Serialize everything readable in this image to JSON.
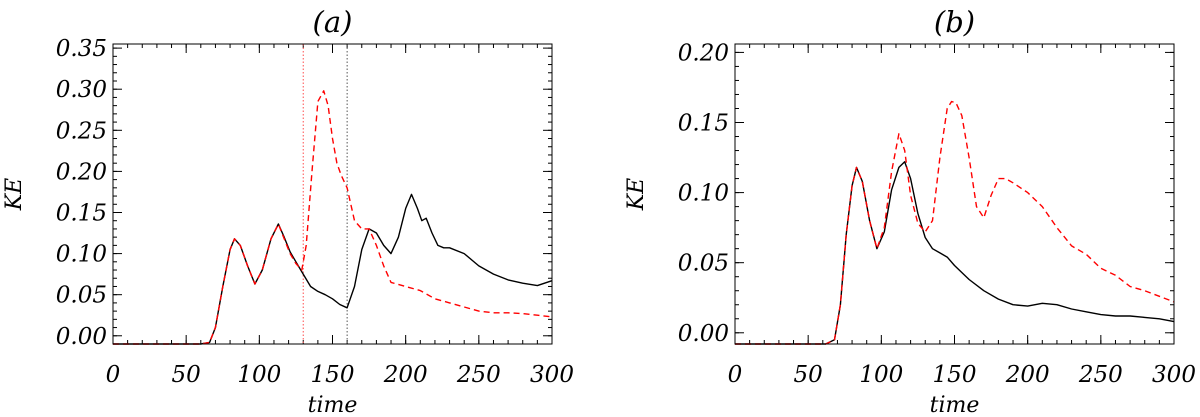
{
  "chart_data": [
    {
      "type": "line",
      "title": "(a)",
      "xlabel": "time",
      "ylabel": "KE",
      "xlim": [
        0,
        300
      ],
      "ylim": [
        -0.01,
        0.355
      ],
      "xticks": [
        0,
        50,
        100,
        150,
        200,
        250,
        300
      ],
      "xtick_labels": [
        "0",
        "50",
        "100",
        "150",
        "200",
        "250",
        "300"
      ],
      "yticks": [
        0.0,
        0.05,
        0.1,
        0.15,
        0.2,
        0.25,
        0.3,
        0.35
      ],
      "ytick_labels": [
        "0.00",
        "0.05",
        "0.10",
        "0.15",
        "0.20",
        "0.25",
        "0.30",
        "0.35"
      ],
      "vlines": [
        {
          "x": 130,
          "color": "#ff4d4d"
        },
        {
          "x": 160,
          "color": "#555555"
        }
      ],
      "series": [
        {
          "color": "#000000",
          "dash": "solid",
          "x": [
            0,
            60,
            66,
            70,
            75,
            80,
            83,
            87,
            92,
            97,
            102,
            108,
            113,
            117,
            121,
            125,
            130,
            135,
            140,
            145,
            150,
            155,
            160,
            165,
            170,
            175,
            180,
            185,
            190,
            195,
            200,
            204,
            208,
            211,
            214,
            218,
            222,
            226,
            230,
            240,
            250,
            260,
            270,
            280,
            290,
            300
          ],
          "y": [
            -0.01,
            -0.01,
            -0.008,
            0.01,
            0.06,
            0.105,
            0.118,
            0.11,
            0.085,
            0.063,
            0.08,
            0.118,
            0.136,
            0.12,
            0.102,
            0.09,
            0.075,
            0.06,
            0.054,
            0.05,
            0.045,
            0.038,
            0.034,
            0.06,
            0.105,
            0.13,
            0.125,
            0.11,
            0.1,
            0.12,
            0.155,
            0.172,
            0.155,
            0.14,
            0.143,
            0.125,
            0.11,
            0.107,
            0.107,
            0.1,
            0.085,
            0.075,
            0.068,
            0.064,
            0.061,
            0.067
          ]
        },
        {
          "color": "#ff0000",
          "dash": "dashed",
          "x": [
            0,
            60,
            66,
            70,
            75,
            80,
            83,
            87,
            92,
            97,
            102,
            108,
            113,
            117,
            121,
            125,
            129,
            132,
            136,
            140,
            144,
            147,
            150,
            153,
            156,
            160,
            165,
            170,
            175,
            180,
            185,
            190,
            200,
            210,
            220,
            230,
            240,
            250,
            260,
            270,
            280,
            290,
            300
          ],
          "y": [
            -0.01,
            -0.01,
            -0.008,
            0.01,
            0.06,
            0.105,
            0.118,
            0.11,
            0.085,
            0.063,
            0.08,
            0.118,
            0.136,
            0.118,
            0.1,
            0.088,
            0.08,
            0.11,
            0.2,
            0.285,
            0.298,
            0.28,
            0.24,
            0.21,
            0.195,
            0.18,
            0.14,
            0.13,
            0.13,
            0.11,
            0.085,
            0.065,
            0.06,
            0.055,
            0.045,
            0.04,
            0.035,
            0.03,
            0.028,
            0.028,
            0.027,
            0.025,
            0.023
          ]
        }
      ]
    },
    {
      "type": "line",
      "title": "(b)",
      "xlabel": "time",
      "ylabel": "KE",
      "xlim": [
        0,
        300
      ],
      "ylim": [
        -0.008,
        0.206
      ],
      "xticks": [
        0,
        50,
        100,
        150,
        200,
        250,
        300
      ],
      "xtick_labels": [
        "0",
        "50",
        "100",
        "150",
        "200",
        "250",
        "300"
      ],
      "yticks": [
        0.0,
        0.05,
        0.1,
        0.15,
        0.2
      ],
      "ytick_labels": [
        "0.00",
        "0.05",
        "0.10",
        "0.15",
        "0.20"
      ],
      "vlines": [],
      "series": [
        {
          "color": "#000000",
          "dash": "solid",
          "x": [
            0,
            62,
            68,
            72,
            76,
            80,
            83,
            87,
            92,
            97,
            102,
            107,
            112,
            116,
            120,
            125,
            130,
            135,
            140,
            145,
            150,
            160,
            170,
            180,
            190,
            200,
            210,
            220,
            230,
            240,
            250,
            260,
            270,
            280,
            290,
            300
          ],
          "y": [
            -0.008,
            -0.008,
            -0.005,
            0.02,
            0.07,
            0.105,
            0.118,
            0.108,
            0.08,
            0.06,
            0.072,
            0.102,
            0.118,
            0.122,
            0.11,
            0.085,
            0.068,
            0.06,
            0.057,
            0.054,
            0.048,
            0.038,
            0.03,
            0.024,
            0.02,
            0.019,
            0.021,
            0.02,
            0.017,
            0.015,
            0.013,
            0.012,
            0.012,
            0.011,
            0.01,
            0.008
          ]
        },
        {
          "color": "#ff0000",
          "dash": "dashed",
          "x": [
            0,
            62,
            68,
            72,
            76,
            80,
            83,
            87,
            92,
            97,
            102,
            107,
            112,
            116,
            120,
            125,
            130,
            135,
            140,
            145,
            148,
            151,
            155,
            160,
            165,
            170,
            175,
            180,
            185,
            190,
            200,
            210,
            220,
            230,
            240,
            250,
            260,
            270,
            280,
            290,
            300
          ],
          "y": [
            -0.008,
            -0.008,
            -0.005,
            0.02,
            0.07,
            0.105,
            0.118,
            0.108,
            0.08,
            0.06,
            0.075,
            0.115,
            0.142,
            0.13,
            0.098,
            0.078,
            0.072,
            0.08,
            0.125,
            0.16,
            0.165,
            0.164,
            0.155,
            0.125,
            0.09,
            0.082,
            0.098,
            0.11,
            0.11,
            0.107,
            0.1,
            0.09,
            0.075,
            0.062,
            0.056,
            0.046,
            0.041,
            0.033,
            0.03,
            0.026,
            0.022
          ]
        }
      ]
    }
  ]
}
